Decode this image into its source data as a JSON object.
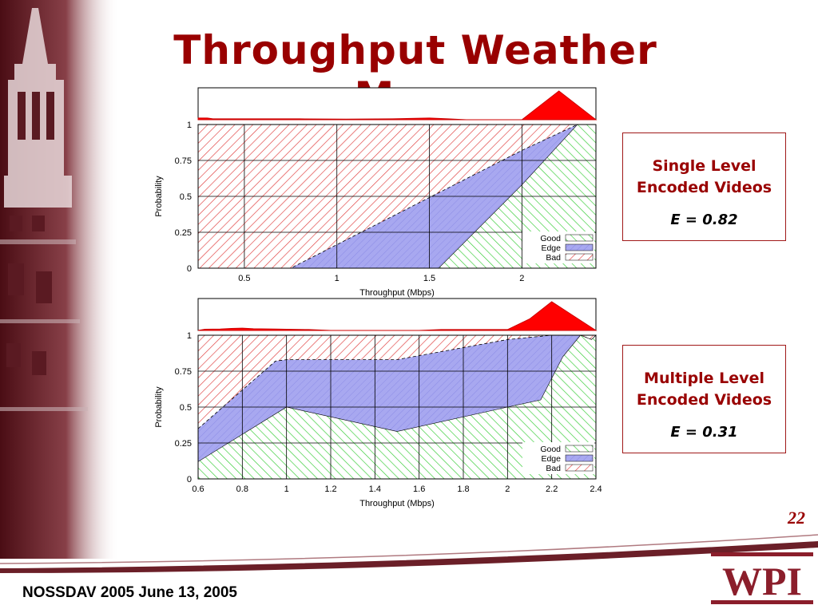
{
  "slide": {
    "title": "Throughput Weather Maps",
    "page_number": "22",
    "footer": "NOSSDAV 2005 June 13, 2005",
    "logo_text": "WPI"
  },
  "callouts": [
    {
      "line1": "Single Level",
      "line2": "Encoded Videos",
      "metric": "E = 0.82"
    },
    {
      "line1": "Multiple Level",
      "line2": "Encoded Videos",
      "metric": "E = 0.31"
    }
  ],
  "colors": {
    "title": "#990000",
    "good": "#33cc33",
    "edge": "#8c8ce6",
    "bad": "#e03c3c",
    "histogram": "#ff0000"
  },
  "chart_data": [
    {
      "type": "area",
      "xlabel": "Throughput (Mbps)",
      "ylabel": "Probability",
      "xlim": [
        0.25,
        2.4
      ],
      "ylim": [
        0,
        1
      ],
      "x_ticks": [
        "0.5",
        "1",
        "1.5",
        "2"
      ],
      "x_tick_values": [
        0.5,
        1,
        1.5,
        2
      ],
      "y_ticks": [
        "0",
        "0.25",
        "0.5",
        "0.75",
        "1"
      ],
      "y_tick_values": [
        0,
        0.25,
        0.5,
        0.75,
        1
      ],
      "legend": [
        "Good",
        "Edge",
        "Bad"
      ],
      "legend_position": "bottom-right",
      "grid": true,
      "good_boundary": {
        "x": [
          0.25,
          1.55,
          2.0,
          2.3,
          2.4
        ],
        "y": [
          0,
          0,
          0.58,
          1,
          1
        ]
      },
      "bad_boundary": {
        "x": [
          0.25,
          0.75,
          2.0,
          2.3,
          2.4
        ],
        "y": [
          0,
          0,
          0.82,
          1,
          1
        ]
      },
      "histogram": {
        "x": [
          0.25,
          0.3,
          0.33,
          0.8,
          1.05,
          1.3,
          1.5,
          1.6,
          1.7,
          2.0,
          2.2,
          2.4
        ],
        "y": [
          0.06,
          0.06,
          0.03,
          0.03,
          0.02,
          0.03,
          0.06,
          0.03,
          0,
          0,
          1,
          0
        ]
      }
    },
    {
      "type": "area",
      "xlabel": "Throughput (Mbps)",
      "ylabel": "Probability",
      "xlim": [
        0.6,
        2.4
      ],
      "ylim": [
        0,
        1
      ],
      "x_ticks": [
        "0.6",
        "0.8",
        "1",
        "1.2",
        "1.4",
        "1.6",
        "1.8",
        "2",
        "2.2",
        "2.4"
      ],
      "x_tick_values": [
        0.6,
        0.8,
        1,
        1.2,
        1.4,
        1.6,
        1.8,
        2,
        2.2,
        2.4
      ],
      "y_ticks": [
        "0",
        "0.25",
        "0.5",
        "0.75",
        "1"
      ],
      "y_tick_values": [
        0,
        0.25,
        0.5,
        0.75,
        1
      ],
      "legend": [
        "Good",
        "Edge",
        "Bad"
      ],
      "legend_position": "bottom-right",
      "grid": true,
      "good_boundary": {
        "x": [
          0.6,
          1.0,
          1.5,
          2.0,
          2.15,
          2.25,
          2.33,
          2.38,
          2.4
        ],
        "y": [
          0.12,
          0.5,
          0.33,
          0.5,
          0.55,
          0.85,
          1,
          0.97,
          1
        ]
      },
      "bad_boundary": {
        "x": [
          0.6,
          0.95,
          1.0,
          1.5,
          2.0,
          2.2,
          2.33,
          2.38,
          2.4
        ],
        "y": [
          0.35,
          0.82,
          0.83,
          0.83,
          0.97,
          1,
          1,
          0.97,
          1
        ]
      },
      "histogram": {
        "x": [
          0.6,
          0.63,
          0.7,
          0.75,
          0.8,
          0.85,
          0.95,
          1.0,
          1.1,
          1.2,
          1.3,
          1.4,
          1.5,
          1.6,
          1.7,
          2.0,
          2.1,
          2.2,
          2.3,
          2.4
        ],
        "y": [
          0,
          0.04,
          0.05,
          0.07,
          0.08,
          0.06,
          0.05,
          0.04,
          0.03,
          0,
          0,
          0,
          0,
          0,
          0.03,
          0.03,
          0.4,
          1,
          0.5,
          0
        ]
      }
    }
  ]
}
